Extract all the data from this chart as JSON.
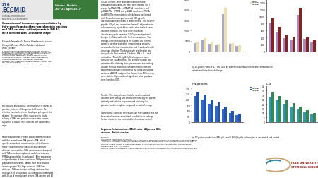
{
  "poster_num": "276",
  "conference_sub": "EUROPEAN CONGRESS OF\nCLINICAL MICROBIOLOGY\nAND INFECTIOUS DISEASES",
  "location": "Vienna, Austria\n23 - 25 April 2017",
  "paper_title": "Comparison of immune responses elicited by\nthird-specific antioxidant-based protein vaccines\nand DNA vaccines with adjuvants in BALB/c\nmice infected with Leishmania major",
  "authors": "Fatemeh Tabatabaie*¹, Narges Khabbazzade Tehrani¹,\nSomayeh Zarvani², Mehdi Mahdavi³, Abbas ali\nImani Fooladi⁴",
  "affiliations": "1- Department of Parasitology and Mycology, Faculty of\nMedicine, Iran University of Medical Sciences, Tehran, Iran.\n2-Microbiology Department, Science & Research Branch,\nIslamic Azad University, Tehran, Iran\n3- Immunology Department, Pasteur Institute of Iran,\nTehran, Iran\n4-Applied Microbiology, Research Center, Baqiyatallah\nUniversity of Medical Science, Tehrann, Iran.\n*Corresponding author: Dr. Fatemeh Tabatabaie,\nDepartment of Parasitology and Mycology, Faculty of\nMedicine, Iran University of Medical Sciences, Tehran, Iran.\nTel: +98-21-86705220\nFax: +98-21-8862 2653   E-mail: f.tabatabaie@iums.ac.ir",
  "background_text": "Background and purpose: Leishmaniasis is caused by\nparasite protozoa of the genus Leishmania. No\neffective vaccine has been developed yet against the\ndisease. The purpose of this study was to study\nefficacy of DNA and protein vaccines with various\nadjuvants in BALB/c mice infected with Leishmania\nmajor.",
  "materials_text": "Materials&methods: Protein vaccines were included\nwith the recombinant TSA protein (TSA , third-\nspecific antioxidant, a main antigen of Leishmania\nmajor ) and montanide ISA 70 oil adjuvant and\nchitosan nanoparticle . DNA vaccines were designed\nwith TSA recombinant plasmid and dendrimer and\nPMMA nanoparticles (as adjuvant) . After expression\nand purification of the recombinant TSA protein and\npreparation adjuvants , BALB/c mice were divided\ninto six groups (TSA/ high chitosan , TSA/ low\nchitosan , TSA/ montanide and high chitosan, low\nchitosan, PBS groups) and subcutaneously immunized\nwith 20 μg of recombinant protein TSA vaccine and 40\nμg of adjuvants at three times intervals on days 8, 14\nand 28.",
  "middle_text": "In DNA vaccine, After plasmid construction and\npreparation adjuvants ,The mice were divided into 7\ngroups (pcDNA3/TSA, pcDNA3/TSA +dendrimer and\npcDNA3/TSA +PMMA and pcDNA3 dendrimer, PMMA\nand PBS).The Immunization schedule was performed\nwith 3 inoculations equal doses of 100 μg with\nintramuscular injections at 3 week interval . The booster\npeptide (20 μg) and incomplete Freund’s adjuvant were\nsubcutaneously injected two weeks after the last nano-\nvaccines injection. The mice were challenged\nintradermally with parasites (1*10⁶ promastigotes of\nL.major ) , 21 days after the final immunization . The\nanimals were then sacrificed the spleens and serum\nsamples were harvested for immunological analysis 3\nweeks after the last immunization and 3 weeks after the\nchallenge infection. The lymphocyte proliferation was\nassayed with Brdu method. Cytokines IFN-γ, IL-4 and\nantibodies ( Total IgG, IgG1, IgG2a) responses were\nassayed with ELISA method. The parasite burden was\ndetermined by draining their spleens using the limiting\ndilution method. Statistical comparisons between the\nexperimental groups were carried out using analysis of\nvariance (ANOVA) and post hoc Turkey tests. Differences\nwere statistically considered significant when p values\nwere less than 0.05.",
  "results_text": "Results: This study showed that the new formulated\nvaccines were strong and effective in inducing the specific\nantibody and cellular responses and reducing the\nparasite burden in spleen compared to control groups.",
  "conclusions_text": "Conclusions: Based on this results, we may suggest that the\nformulated vaccines are suitable candidates to undergo\nfurther studies in the context of leishmaniasis control.",
  "keywords_text": "Keywords: Leishmaniasis , BALB/c mice , Adjuvants, DNA\nvaccines , Protein vaccines",
  "references": "References:\nBadiei A, Sharavi Shangh S, Khamesipour A, Jaafari MR . Microsnanoparticle adjuvants for antileishmanial vaccines: present and\nfuture trends. Vaccine 2013: 31:738-749.\nGhaffarifarl A, Tabatabaie E, Sharifi E, Dalimitei A, Zakir Hassan M, Mahdavi M. Cloning of a Recombinant Plasmid Encoding\nThird-Specific Antioxidant Antigen [TSA] Gene of Leishmania major and Expression in the Chinese Hamster Ovary Cell Line,\nIndian J Med Res. 2012; 19(3): 13-19.\nZarvani S, Mahdi B, Mahdavi M, Khabus zadeh Tehrani S, Abotalebi1 Fehrabi K, Arash Lb, Tabatabaie F. Humoral immune\nresponses in DNA vaccine formulated with poly (methyl methacrylate) against Leishmania major. India Journal of Entomology and\nZoology Studies 2016; 2 (2): 284-288.\nZarvani S, Mahdavi M, Tabatabaie F,Immune responses in DNA vaccine formulated with PMMA following immunization and after\nchallenge with Leishmania major. J Parasit Dis .2014, pp 1-9. DOI 10.1007/s12639-014-0531-8",
  "fig1_title_ifn": "IFN-gamma",
  "fig1_title_il4": "IL-4",
  "fig_caption1": "Fig.1 Cytokine yield [IFN- γ and IL-4] by spleen cells of BALB/c mice after immunization\nperiods and later than challenge",
  "fig_caption2": "Fig.2 Cytokine production [IFN- γ( L) and IL-4(R)] by the splenocytes in vaccinated and control\ngroups",
  "ifn1_before": [
    800,
    1100,
    700,
    600,
    3600,
    700,
    500
  ],
  "ifn1_after": [
    950,
    1300,
    850,
    750,
    4200,
    800,
    600
  ],
  "il4_before": [
    800,
    550,
    380,
    330,
    1050,
    350,
    250
  ],
  "il4_after": [
    950,
    700,
    480,
    420,
    1250,
    420,
    310
  ],
  "ifn1_color_before": "#a8a8cc",
  "ifn1_color_after": "#ede0b0",
  "il4_color_before": "#aa88bb",
  "il4_color_after": "#882222",
  "ifn2_before": [
    230000,
    200000,
    160000,
    140000,
    110000,
    80000,
    60000
  ],
  "ifn2_after": [
    270000,
    240000,
    195000,
    170000,
    135000,
    100000,
    75000
  ],
  "il42_before": [
    28,
    24,
    20,
    17,
    14,
    11,
    8
  ],
  "il42_after": [
    33,
    29,
    25,
    21,
    17,
    13,
    10
  ],
  "ifn2_color_before": "#3366cc",
  "ifn2_color_after": "#2255aa",
  "il42_color_before": "#3399aa",
  "il42_color_after": "#338855",
  "bg_color": "#ffffff",
  "header_green": "#3a7a3a",
  "eccmid_color": "#1a3a6e",
  "logo_red": "#8B1a1a"
}
